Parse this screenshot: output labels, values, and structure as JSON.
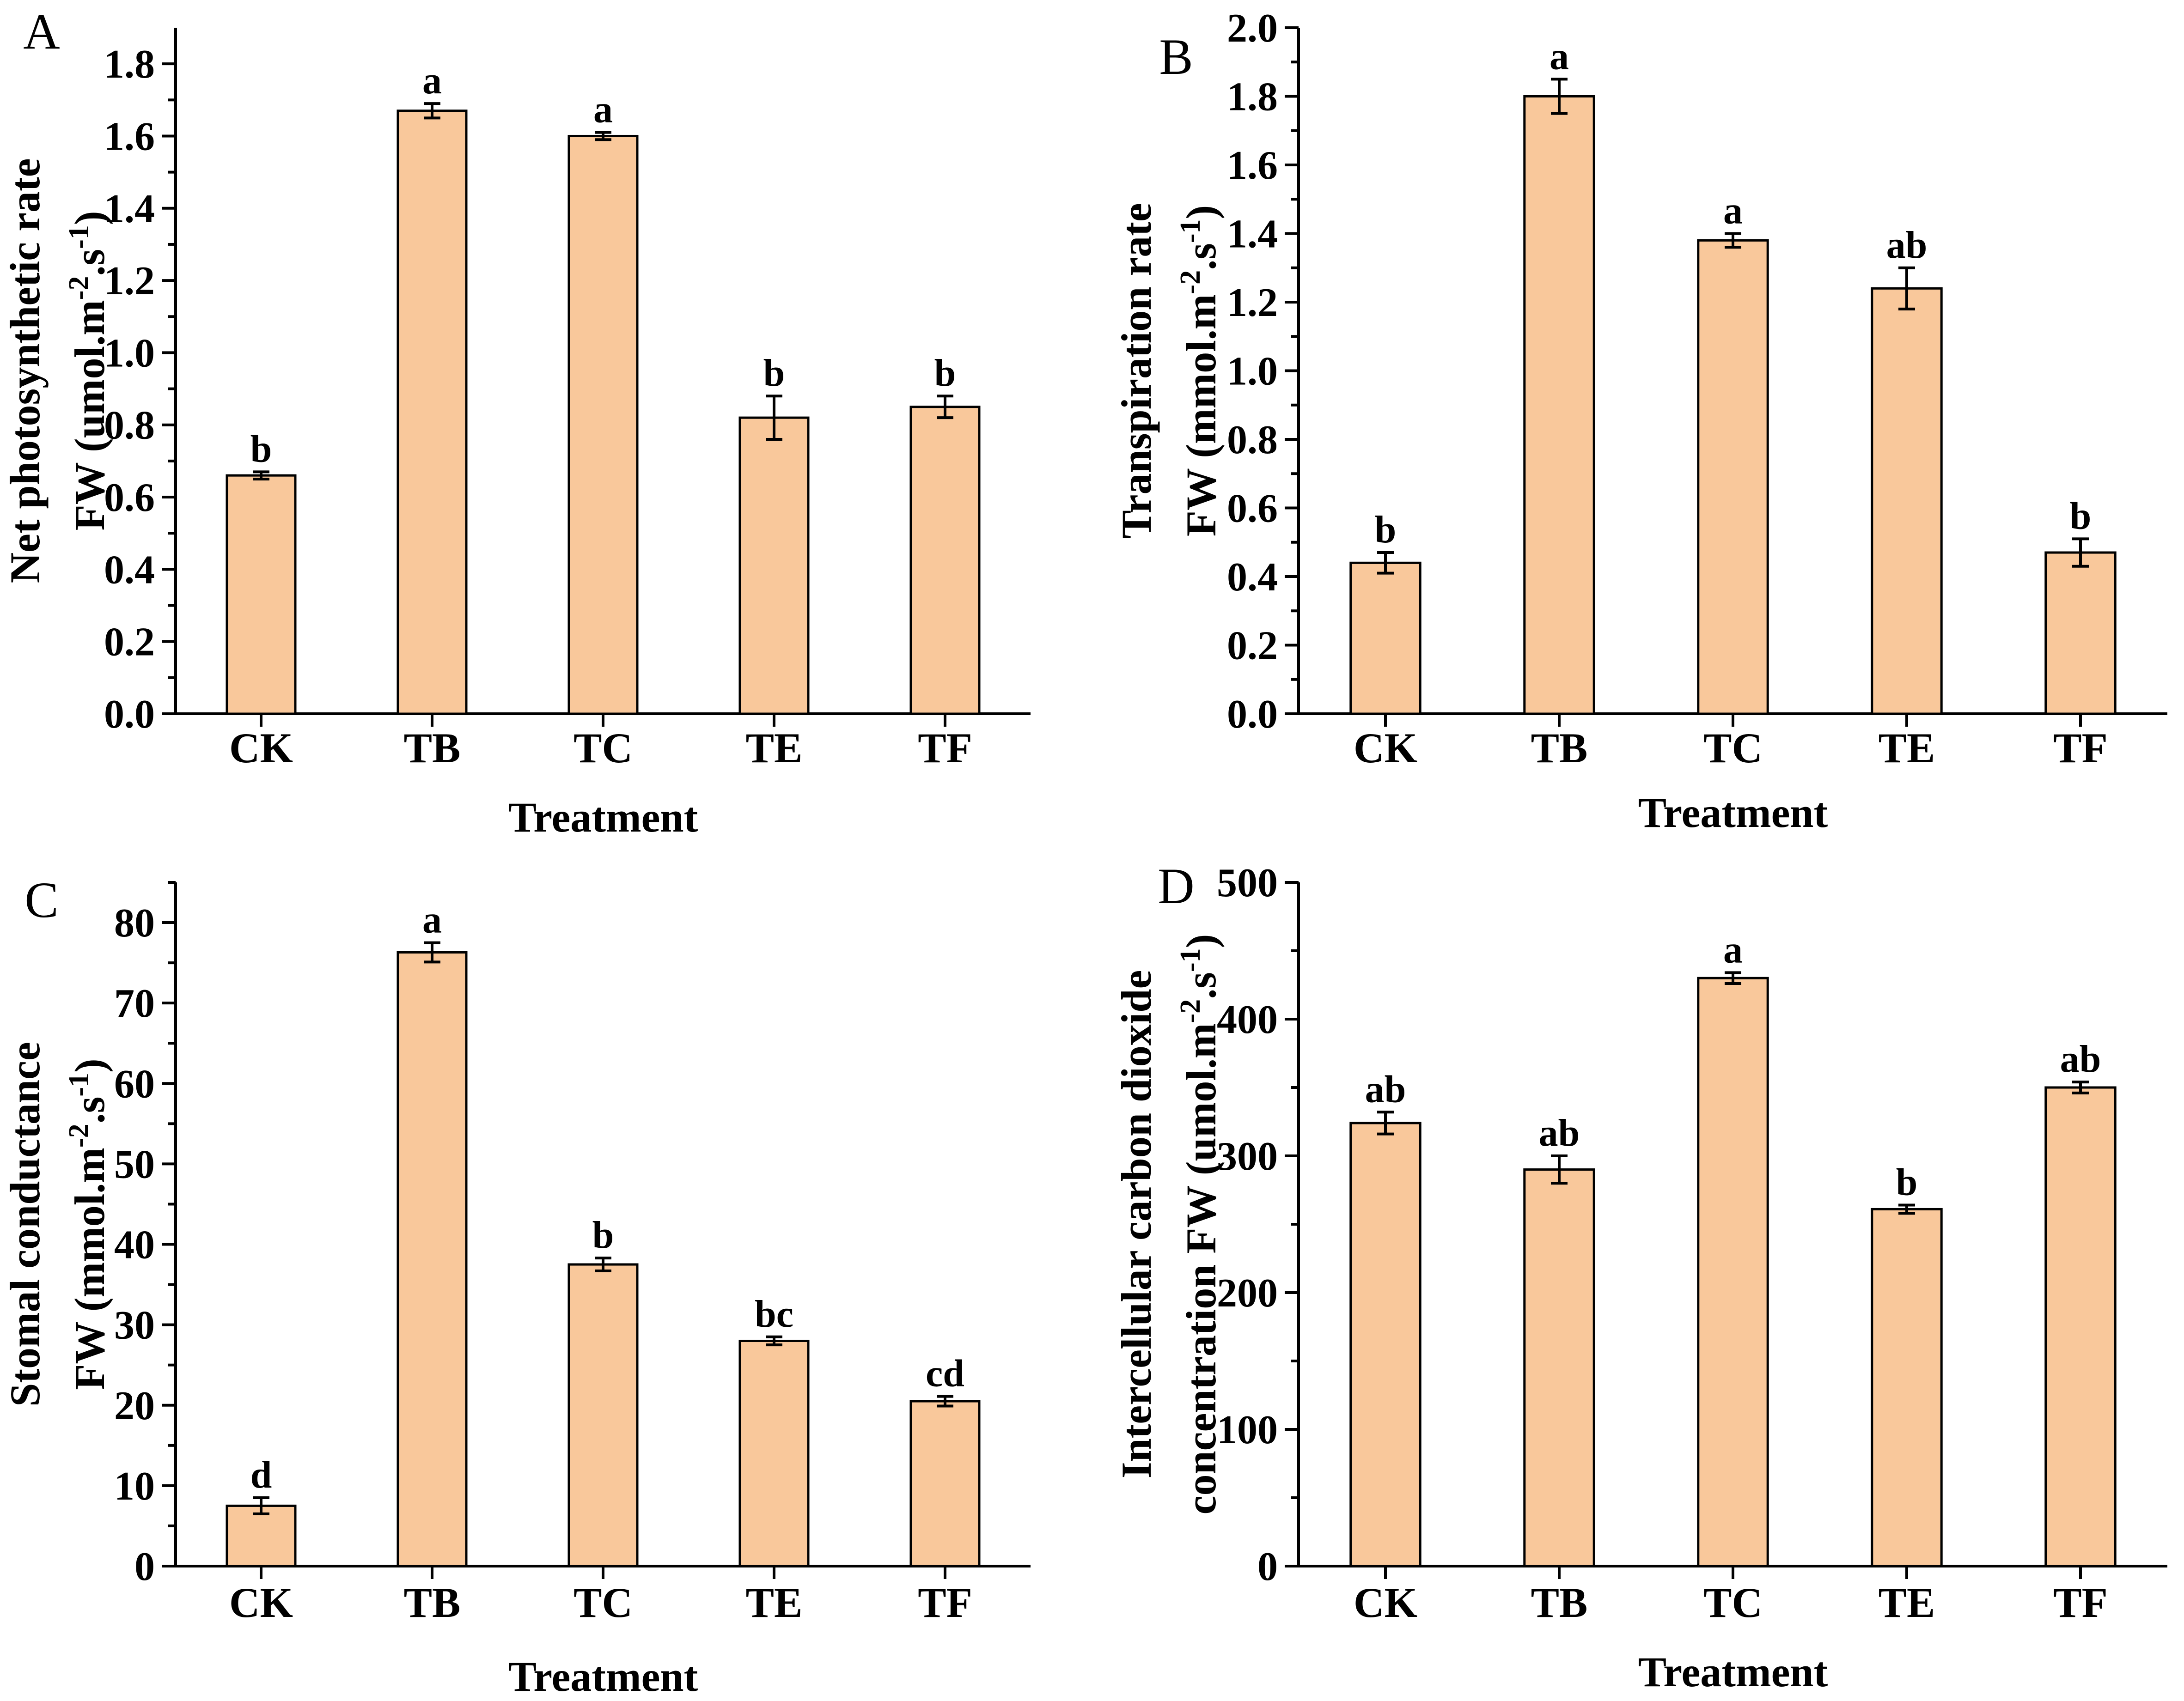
{
  "chart_data": [
    {
      "panel": "A",
      "type": "bar",
      "categories": [
        "CK",
        "TB",
        "TC",
        "TE",
        "TF"
      ],
      "values": [
        0.66,
        1.67,
        1.6,
        0.82,
        0.85
      ],
      "errors": [
        0.01,
        0.02,
        0.01,
        0.06,
        0.03
      ],
      "significance": [
        "b",
        "a",
        "a",
        "b",
        "b"
      ],
      "xlabel": "Treatment",
      "ylabel_line1": "Net photosynthetic rate",
      "ylabel_line2_prefix": "FW (umol.m",
      "ylabel_sup1": "-2",
      "ylabel_mid": ".s",
      "ylabel_sup2": "-1",
      "ylabel_suffix": ")",
      "ylim": [
        0,
        1.9
      ],
      "yticks": [
        "0.0",
        "0.2",
        "0.4",
        "0.6",
        "0.8",
        "1.0",
        "1.2",
        "1.4",
        "1.6",
        "1.8"
      ],
      "ytick_values": [
        0,
        0.2,
        0.4,
        0.6,
        0.8,
        1.0,
        1.2,
        1.4,
        1.6,
        1.8
      ]
    },
    {
      "panel": "B",
      "type": "bar",
      "categories": [
        "CK",
        "TB",
        "TC",
        "TE",
        "TF"
      ],
      "values": [
        0.44,
        1.8,
        1.38,
        1.24,
        0.47
      ],
      "errors": [
        0.03,
        0.05,
        0.02,
        0.06,
        0.04
      ],
      "significance": [
        "b",
        "a",
        "a",
        "ab",
        "b"
      ],
      "xlabel": "Treatment",
      "ylabel_line1": "Transpiration rate",
      "ylabel_line2_prefix": "FW (mmol.m",
      "ylabel_sup1": "-2",
      "ylabel_mid": ".s",
      "ylabel_sup2": "-1",
      "ylabel_suffix": ")",
      "ylim": [
        0,
        2.0
      ],
      "yticks": [
        "0.0",
        "0.2",
        "0.4",
        "0.6",
        "0.8",
        "1.0",
        "1.2",
        "1.4",
        "1.6",
        "1.8",
        "2.0"
      ],
      "ytick_values": [
        0,
        0.2,
        0.4,
        0.6,
        0.8,
        1.0,
        1.2,
        1.4,
        1.6,
        1.8,
        2.0
      ]
    },
    {
      "panel": "C",
      "type": "bar",
      "categories": [
        "CK",
        "TB",
        "TC",
        "TE",
        "TF"
      ],
      "values": [
        7.5,
        76.3,
        37.5,
        28.0,
        20.5
      ],
      "errors": [
        1.0,
        1.2,
        0.8,
        0.5,
        0.6
      ],
      "significance": [
        "d",
        "a",
        "b",
        "bc",
        "cd"
      ],
      "xlabel": "Treatment",
      "ylabel_line1": "Stomal conductance",
      "ylabel_line2_prefix": "FW (mmol.m",
      "ylabel_sup1": "-2",
      "ylabel_mid": ".s",
      "ylabel_sup2": "-1",
      "ylabel_suffix": ")",
      "ylim": [
        0,
        85
      ],
      "yticks": [
        "0",
        "10",
        "20",
        "30",
        "40",
        "50",
        "60",
        "70",
        "80"
      ],
      "ytick_values": [
        0,
        10,
        20,
        30,
        40,
        50,
        60,
        70,
        80
      ]
    },
    {
      "panel": "D",
      "type": "bar",
      "categories": [
        "CK",
        "TB",
        "TC",
        "TE",
        "TF"
      ],
      "values": [
        324,
        290,
        430,
        261,
        350
      ],
      "errors": [
        8,
        10,
        4,
        3,
        4
      ],
      "significance": [
        "ab",
        "ab",
        "a",
        "b",
        "ab"
      ],
      "xlabel": "Treatment",
      "ylabel_line1": "Intercellular carbon dioxide",
      "ylabel_line2_prefix": "concentration FW (umol.m",
      "ylabel_sup1": "-2",
      "ylabel_mid": ".s",
      "ylabel_sup2": "-1",
      "ylabel_suffix": ")",
      "ylim": [
        0,
        500
      ],
      "yticks": [
        "0",
        "100",
        "200",
        "300",
        "400",
        "500"
      ],
      "ytick_values": [
        0,
        100,
        200,
        300,
        400,
        500
      ]
    }
  ],
  "colors": {
    "bar_fill": "#f9c89b",
    "stroke": "#000000",
    "background": "#ffffff"
  }
}
